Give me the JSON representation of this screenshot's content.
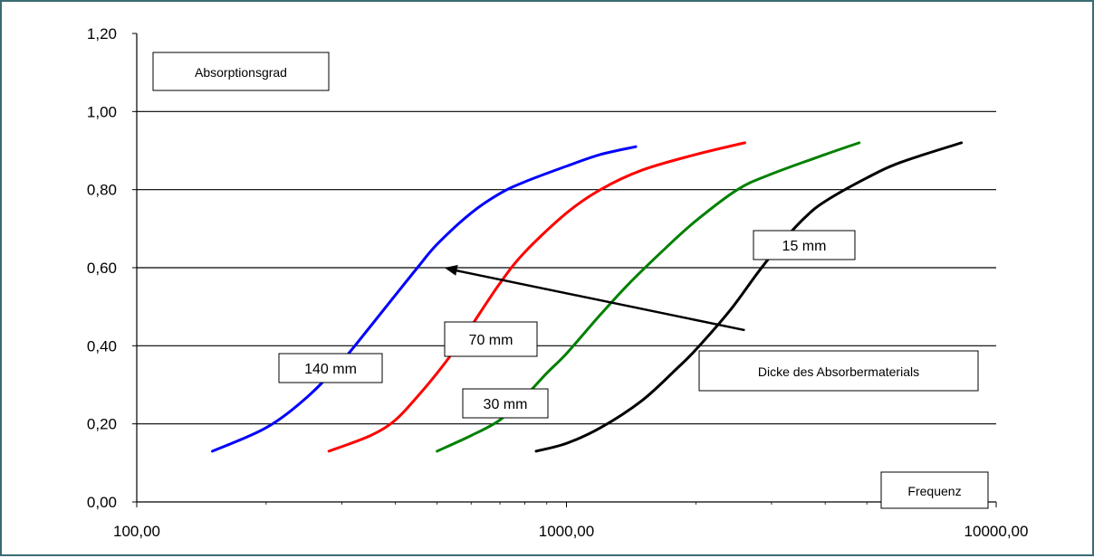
{
  "chart_data": {
    "type": "line",
    "title": "",
    "ylabel": "Absorptionsgrad",
    "xlabel": "Frequenz",
    "x_scale": "log",
    "xlim": [
      100,
      10000
    ],
    "ylim": [
      0,
      1.2
    ],
    "x_ticks": [
      100,
      1000,
      10000
    ],
    "x_tick_labels": [
      "100,00",
      "1000,00",
      "10000,00"
    ],
    "y_ticks": [
      0,
      0.2,
      0.4,
      0.6,
      0.8,
      1.0,
      1.2
    ],
    "y_tick_labels": [
      "0,00",
      "0,20",
      "0,40",
      "0,60",
      "0,80",
      "1,00",
      "1,20"
    ],
    "grid": "horizontal",
    "legend": "none",
    "series": [
      {
        "name": "140 mm",
        "color": "#0000ff",
        "x": [
          150,
          200,
          250,
          300,
          350,
          400,
          450,
          500,
          600,
          700,
          800,
          1000,
          1200,
          1450
        ],
        "y": [
          0.13,
          0.19,
          0.27,
          0.36,
          0.45,
          0.53,
          0.6,
          0.66,
          0.74,
          0.79,
          0.82,
          0.86,
          0.89,
          0.91
        ]
      },
      {
        "name": "70 mm",
        "color": "#ff0000",
        "x": [
          280,
          350,
          400,
          450,
          500,
          550,
          600,
          700,
          800,
          1000,
          1200,
          1500,
          2000,
          2600
        ],
        "y": [
          0.13,
          0.17,
          0.21,
          0.27,
          0.33,
          0.39,
          0.45,
          0.56,
          0.64,
          0.74,
          0.8,
          0.85,
          0.89,
          0.92
        ]
      },
      {
        "name": "30 mm",
        "color": "#008000",
        "x": [
          500,
          600,
          700,
          800,
          900,
          1000,
          1200,
          1400,
          1700,
          2000,
          2500,
          3000,
          4000,
          4800
        ],
        "y": [
          0.13,
          0.17,
          0.21,
          0.27,
          0.33,
          0.38,
          0.48,
          0.56,
          0.65,
          0.72,
          0.8,
          0.84,
          0.89,
          0.92
        ]
      },
      {
        "name": "15 mm",
        "color": "#000000",
        "x": [
          850,
          1000,
          1200,
          1500,
          1800,
          2000,
          2400,
          2800,
          3200,
          3600,
          4000,
          5000,
          6000,
          8300
        ],
        "y": [
          0.13,
          0.15,
          0.19,
          0.26,
          0.34,
          0.39,
          0.49,
          0.59,
          0.67,
          0.73,
          0.77,
          0.83,
          0.87,
          0.92
        ]
      }
    ],
    "annotations": [
      {
        "text": "140 mm",
        "x": 230,
        "y": 0.365
      },
      {
        "text": "70 mm",
        "x": 540,
        "y": 0.475
      },
      {
        "text": "30 mm",
        "x": 560,
        "y": 0.295
      },
      {
        "text": "15 mm",
        "x": 3800,
        "y": 0.715
      },
      {
        "text": "Dicke des Absorbermaterials",
        "x": 3500,
        "y": 0.36
      }
    ],
    "arrow": {
      "from": {
        "x": 2600,
        "y": 0.44
      },
      "to": {
        "x": 520,
        "y": 0.6
      }
    }
  }
}
